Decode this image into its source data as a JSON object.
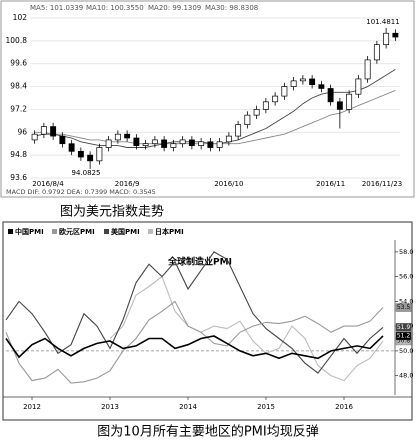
{
  "chart_data": [
    {
      "type": "candlestick",
      "header": [
        "MA5: 101.0339",
        "MA10: 100.3550",
        "MA20: 99.1309",
        "MA30: 98.8308"
      ],
      "categories": [
        "2016/8/4",
        null,
        null,
        null,
        null,
        null,
        null,
        null,
        null,
        null,
        "2016/9",
        null,
        null,
        null,
        null,
        null,
        null,
        null,
        null,
        null,
        null,
        "2016/10",
        null,
        null,
        null,
        null,
        null,
        null,
        null,
        null,
        null,
        null,
        "2016/11",
        null,
        null,
        null,
        null,
        null,
        null,
        "2016/11/23"
      ],
      "open": [
        95.6,
        95.9,
        96.3,
        95.8,
        95.4,
        95.0,
        94.8,
        94.5,
        95.2,
        95.6,
        95.9,
        95.7,
        95.3,
        95.4,
        95.6,
        95.2,
        95.4,
        95.6,
        95.3,
        95.5,
        95.2,
        95.5,
        95.8,
        96.4,
        96.9,
        97.2,
        97.6,
        97.9,
        98.4,
        98.7,
        98.8,
        98.5,
        98.3,
        97.6,
        97.2,
        98.0,
        98.8,
        99.8,
        100.6,
        101.2
      ],
      "high": [
        96.1,
        96.5,
        96.5,
        96.0,
        95.6,
        95.2,
        95.0,
        95.4,
        95.8,
        96.1,
        96.1,
        95.9,
        95.6,
        95.8,
        95.8,
        95.6,
        95.8,
        95.8,
        95.7,
        95.7,
        95.7,
        96.0,
        96.6,
        97.1,
        97.4,
        97.8,
        98.1,
        98.6,
        98.9,
        99.0,
        99.0,
        98.7,
        98.5,
        97.8,
        98.2,
        99.0,
        100.0,
        100.8,
        101.48,
        101.4
      ],
      "low": [
        95.4,
        95.7,
        95.6,
        95.2,
        94.8,
        94.5,
        94.08,
        94.3,
        95.0,
        95.4,
        95.5,
        95.1,
        95.1,
        95.2,
        95.0,
        95.0,
        95.2,
        95.1,
        95.1,
        95.0,
        95.0,
        95.3,
        95.6,
        96.2,
        96.7,
        97.0,
        97.4,
        97.7,
        98.2,
        98.5,
        98.3,
        98.1,
        97.4,
        96.2,
        97.0,
        97.8,
        98.6,
        99.6,
        100.4,
        100.8
      ],
      "close": [
        95.9,
        96.3,
        95.8,
        95.4,
        95.0,
        94.7,
        94.5,
        95.2,
        95.6,
        95.9,
        95.7,
        95.3,
        95.4,
        95.6,
        95.2,
        95.4,
        95.6,
        95.3,
        95.5,
        95.2,
        95.5,
        95.8,
        96.4,
        96.9,
        97.2,
        97.6,
        97.9,
        98.4,
        98.7,
        98.8,
        98.5,
        98.3,
        97.6,
        97.2,
        98.0,
        98.8,
        99.8,
        100.6,
        101.2,
        101.0
      ],
      "ma_lines": [
        {
          "color": "#444444",
          "values": [
            95.8,
            95.9,
            95.9,
            95.8,
            95.7,
            95.5,
            95.4,
            95.3,
            95.3,
            95.3,
            95.2,
            95.2,
            95.2,
            95.3,
            95.4,
            95.5,
            95.5,
            95.5,
            95.5,
            95.4,
            95.4,
            95.5,
            95.6,
            95.8,
            96.0,
            96.2,
            96.5,
            96.8,
            97.1,
            97.5,
            97.8,
            98.0,
            98.1,
            98.1,
            98.1,
            98.2,
            98.4,
            98.7,
            99.0,
            99.3
          ]
        },
        {
          "color": "#888888",
          "values": [
            96.0,
            96.0,
            95.9,
            95.9,
            95.8,
            95.7,
            95.6,
            95.6,
            95.5,
            95.5,
            95.5,
            95.4,
            95.4,
            95.4,
            95.4,
            95.4,
            95.4,
            95.4,
            95.4,
            95.4,
            95.4,
            95.4,
            95.4,
            95.5,
            95.6,
            95.7,
            95.8,
            95.9,
            96.1,
            96.3,
            96.5,
            96.7,
            96.9,
            97.0,
            97.2,
            97.4,
            97.6,
            97.8,
            98.0,
            98.2
          ]
        }
      ],
      "ylim": [
        93.6,
        102
      ],
      "yticks": [
        93.6,
        94.8,
        96,
        97.2,
        98.4,
        99.6,
        100.8,
        102
      ],
      "grid": true,
      "annotations": [
        "101.4811",
        "94.0825"
      ],
      "footer": "MACD  DIF: 0.9792  DEA: 0.7399  MACD: 0.3545",
      "caption": "图为美元指数走势"
    },
    {
      "type": "line",
      "title": "全球制造业PMI",
      "categories": [
        null,
        null,
        "2012",
        null,
        null,
        null,
        null,
        null,
        "2013",
        null,
        null,
        null,
        null,
        null,
        "2014",
        null,
        null,
        null,
        null,
        null,
        "2015",
        null,
        null,
        null,
        null,
        null,
        "2016",
        null,
        null,
        null
      ],
      "series": [
        {
          "name": "中国PMI",
          "color": "#000000",
          "values": [
            51.0,
            49.5,
            50.5,
            51.0,
            50.2,
            49.6,
            50.2,
            50.6,
            50.8,
            50.2,
            50.4,
            51.0,
            51.0,
            50.2,
            50.5,
            51.0,
            51.2,
            50.6,
            50.0,
            49.6,
            49.8,
            49.4,
            49.8,
            49.6,
            49.4,
            50.0,
            50.2,
            50.4,
            50.2,
            51.2
          ]
        },
        {
          "name": "欧元区PMI",
          "color": "#999999",
          "values": [
            51.5,
            49.0,
            47.6,
            47.8,
            48.5,
            47.4,
            47.5,
            47.8,
            48.4,
            50.0,
            51.0,
            52.5,
            53.2,
            54.0,
            52.0,
            51.5,
            50.6,
            50.4,
            51.5,
            52.0,
            52.3,
            52.2,
            52.4,
            52.8,
            52.2,
            51.5,
            52.0,
            52.0,
            52.4,
            53.5
          ]
        },
        {
          "name": "美国PMI",
          "color": "#444444",
          "values": [
            52.5,
            54.0,
            53.0,
            51.5,
            49.8,
            50.5,
            53.0,
            52.0,
            50.2,
            52.5,
            55.5,
            57.0,
            56.0,
            57.2,
            55.0,
            56.5,
            58.0,
            57.4,
            55.2,
            53.0,
            51.8,
            51.0,
            50.2,
            49.0,
            48.2,
            49.6,
            51.0,
            49.8,
            51.0,
            51.9
          ]
        },
        {
          "name": "日本PMI",
          "color": "#bbbbbb",
          "values": [
            null,
            null,
            null,
            null,
            null,
            null,
            null,
            null,
            51.0,
            52.0,
            54.5,
            55.2,
            56.0,
            53.2,
            52.0,
            51.5,
            52.0,
            51.8,
            52.4,
            50.8,
            49.8,
            50.2,
            52.0,
            51.0,
            48.8,
            48.0,
            47.6,
            48.8,
            49.4,
            50.8
          ]
        }
      ],
      "ylim": [
        47,
        59.2
      ],
      "yticks": [
        {
          "value": 48,
          "label": "48.0"
        },
        {
          "value": 50,
          "label": "50.0"
        },
        {
          "value": 52,
          "label": "52.0"
        },
        {
          "value": 54,
          "label": "54.0"
        },
        {
          "value": 56,
          "label": "56.0"
        },
        {
          "value": 58,
          "label": "58.0"
        }
      ],
      "ref_line": 50,
      "caption": "图为10月所有主要地区的PMI均现反弹"
    }
  ]
}
